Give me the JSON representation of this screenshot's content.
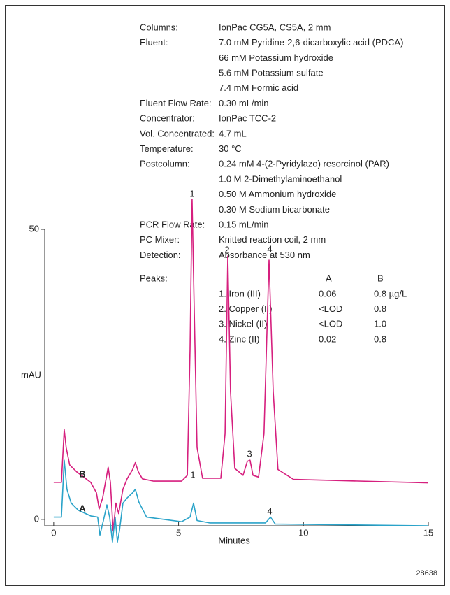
{
  "chart_data": {
    "type": "line",
    "conditions": [
      {
        "label": "Columns:",
        "lines": [
          "IonPac CG5A, CS5A, 2 mm"
        ]
      },
      {
        "label": "Eluent:",
        "lines": [
          "7.0 mM Pyridine-2,6-dicarboxylic acid (PDCA)",
          "66 mM Potassium hydroxide",
          "5.6 mM Potassium sulfate",
          "7.4 mM Formic acid"
        ]
      },
      {
        "label": "Eluent Flow Rate:",
        "lines": [
          "0.30 mL/min"
        ]
      },
      {
        "label": "Concentrator:",
        "lines": [
          "IonPac TCC-2"
        ]
      },
      {
        "label": "Vol. Concentrated:",
        "lines": [
          "4.7 mL"
        ]
      },
      {
        "label": "Temperature:",
        "lines": [
          "30 °C"
        ]
      },
      {
        "label": "Postcolumn:",
        "lines": [
          "0.24 mM 4-(2-Pyridylazo) resorcinol (PAR)",
          "1.0 M 2-Dimethylaminoethanol",
          "0.50 M Ammonium hydroxide",
          "0.30 M Sodium bicarbonate"
        ]
      },
      {
        "label": "PCR Flow Rate:",
        "lines": [
          "0.15 mL/min"
        ]
      },
      {
        "label": "PC Mixer:",
        "lines": [
          "Knitted reaction coil, 2 mm"
        ]
      },
      {
        "label": "Detection:",
        "lines": [
          "Absorbance at 530 nm"
        ]
      }
    ],
    "peaks": {
      "label": "Peaks:",
      "columns": [
        "A",
        "B"
      ],
      "rows": [
        [
          "1. Iron (III)",
          "0.06",
          "0.8 µg/L"
        ],
        [
          "2. Copper (II)",
          "<LOD",
          "0.8"
        ],
        [
          "3. Nickel (II)",
          "<LOD",
          "1.0"
        ],
        [
          "4. Zinc (II)",
          "0.02",
          "0.8"
        ]
      ]
    },
    "x_label": "Minutes",
    "y_label": "mAU",
    "xlim": [
      -0.36,
      15
    ],
    "xticks": [
      0,
      5,
      10,
      15
    ],
    "ylim": [
      -1.1,
      50
    ],
    "yticks": [
      0,
      50
    ],
    "series": [
      {
        "name": "B",
        "color": "#d61f7e",
        "x": [
          0,
          0.31,
          0.42,
          0.5,
          0.64,
          0.92,
          1.48,
          1.71,
          1.82,
          1.96,
          2.18,
          2.27,
          2.38,
          2.49,
          2.6,
          2.77,
          2.94,
          3.16,
          3.27,
          3.39,
          3.55,
          4.0,
          5.12,
          5.35,
          5.46,
          5.54,
          5.62,
          5.74,
          5.96,
          6.69,
          6.86,
          6.97,
          7.08,
          7.25,
          7.58,
          7.75,
          7.86,
          7.98,
          8.2,
          8.42,
          8.62,
          8.79,
          8.98,
          9.6,
          15
        ],
        "values": [
          6.4,
          6.4,
          15.5,
          12.4,
          9.4,
          8.2,
          6.4,
          4.6,
          1.8,
          3.7,
          9.0,
          6.4,
          -2.0,
          2.8,
          1.0,
          5.2,
          7.0,
          8.6,
          9.8,
          8.2,
          7.0,
          6.6,
          6.6,
          7.6,
          29.3,
          55.2,
          37.7,
          12.4,
          7.1,
          7.1,
          14.8,
          45.4,
          22.0,
          8.8,
          7.6,
          10.0,
          10.2,
          7.6,
          7.3,
          14.8,
          44.7,
          22.0,
          8.6,
          6.9,
          6.3
        ]
      },
      {
        "name": "A",
        "color": "#2aa3c9",
        "x": [
          0,
          0.31,
          0.42,
          0.53,
          0.7,
          0.98,
          1.48,
          1.76,
          1.85,
          1.99,
          2.13,
          2.24,
          2.35,
          2.46,
          2.55,
          2.63,
          2.77,
          2.94,
          3.16,
          3.27,
          3.41,
          3.72,
          5.12,
          5.46,
          5.6,
          5.74,
          6.24,
          8.48,
          8.68,
          8.87,
          15
        ],
        "values": [
          0.4,
          0.4,
          10.2,
          5.2,
          2.8,
          1.6,
          0.6,
          0.4,
          -2.7,
          -0.2,
          2.5,
          0.4,
          -3.9,
          0.4,
          -3.9,
          -2.0,
          2.8,
          3.7,
          4.6,
          5.2,
          3.0,
          0.4,
          -0.4,
          0.4,
          2.8,
          -0.2,
          -0.6,
          -0.6,
          0.4,
          -0.8,
          -1.1
        ]
      }
    ],
    "annotations": [
      "1",
      "2",
      "3",
      "4",
      "1",
      "4",
      "B",
      "A"
    ],
    "figure_number": "28638"
  }
}
